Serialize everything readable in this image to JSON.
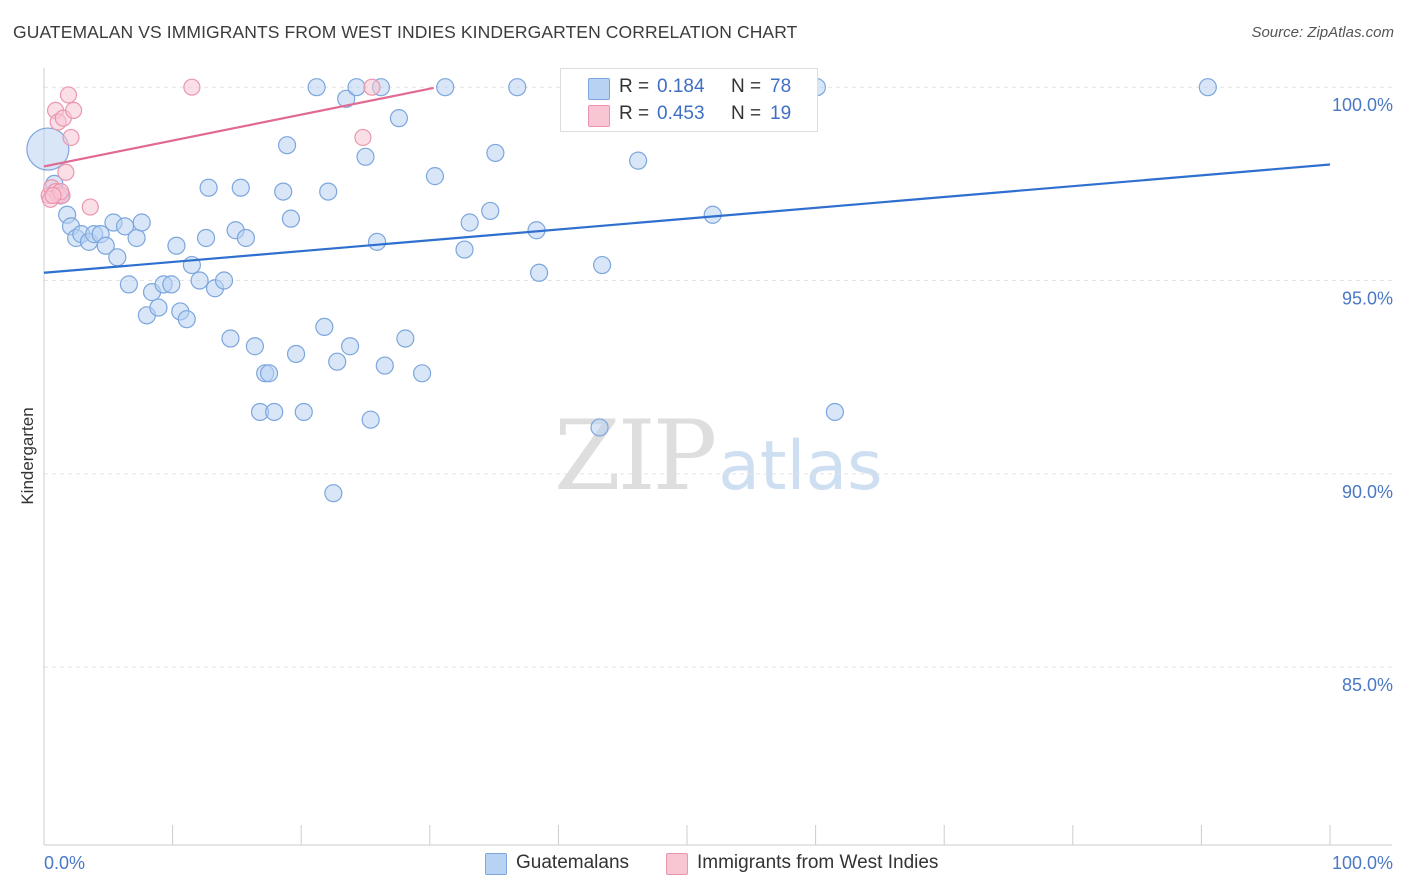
{
  "header": {
    "title": "GUATEMALAN VS IMMIGRANTS FROM WEST INDIES KINDERGARTEN CORRELATION CHART",
    "source": "Source: ZipAtlas.com"
  },
  "watermark": {
    "zip": "ZIP",
    "atlas": "atlas"
  },
  "stats": {
    "blue": {
      "r_label": "R =",
      "r_value": "0.184",
      "n_label": "N =",
      "n_value": "78"
    },
    "pink": {
      "r_label": "R =",
      "r_value": "0.453",
      "n_label": "N =",
      "n_value": "19"
    }
  },
  "legend": {
    "blue_label": "Guatemalans",
    "pink_label": "Immigrants from West Indies"
  },
  "colors": {
    "blue_fill": "#b8d2f3",
    "blue_stroke": "#7da6dd",
    "blue_line": "#2f6fcf",
    "pink_fill": "#f8c5d3",
    "pink_stroke": "#eb95b0",
    "pink_line": "#e06a94",
    "tick_text": "#4a78c4"
  },
  "chart_data": {
    "type": "scatter",
    "title": "GUATEMALAN VS IMMIGRANTS FROM WEST INDIES KINDERGARTEN CORRELATION CHART",
    "xlabel": "",
    "ylabel": "Kindergarten",
    "xlim": [
      0,
      100
    ],
    "ylim": [
      80.4,
      100.6
    ],
    "x_tick_labels": [
      {
        "value": 0,
        "label": "0.0%"
      },
      {
        "value": 100,
        "label": "100.0%"
      }
    ],
    "y_tick_labels": [
      {
        "value": 100,
        "label": "100.0%"
      },
      {
        "value": 95,
        "label": "95.0%"
      },
      {
        "value": 90,
        "label": "90.0%"
      },
      {
        "value": 85,
        "label": "85.0%"
      }
    ],
    "grid": true,
    "legend_position": "bottom",
    "series": [
      {
        "name": "Guatemalans",
        "color": "#7da6dd",
        "trend": {
          "x": [
            0,
            100
          ],
          "y": [
            95.2,
            98.0
          ]
        },
        "points": [
          {
            "x": 0.3,
            "y": 98.4,
            "big": true
          },
          {
            "x": 0.8,
            "y": 97.5
          },
          {
            "x": 1.3,
            "y": 97.2
          },
          {
            "x": 1.8,
            "y": 96.7
          },
          {
            "x": 2.1,
            "y": 96.4
          },
          {
            "x": 2.5,
            "y": 96.1
          },
          {
            "x": 2.9,
            "y": 96.2
          },
          {
            "x": 3.5,
            "y": 96.0
          },
          {
            "x": 3.9,
            "y": 96.2
          },
          {
            "x": 4.4,
            "y": 96.2
          },
          {
            "x": 4.8,
            "y": 95.9
          },
          {
            "x": 5.4,
            "y": 96.5
          },
          {
            "x": 5.7,
            "y": 95.6
          },
          {
            "x": 6.3,
            "y": 96.4
          },
          {
            "x": 6.6,
            "y": 94.9
          },
          {
            "x": 7.2,
            "y": 96.1
          },
          {
            "x": 7.6,
            "y": 96.5
          },
          {
            "x": 8.0,
            "y": 94.1
          },
          {
            "x": 8.4,
            "y": 94.7
          },
          {
            "x": 8.9,
            "y": 94.3
          },
          {
            "x": 9.3,
            "y": 94.9
          },
          {
            "x": 9.9,
            "y": 94.9
          },
          {
            "x": 10.3,
            "y": 95.9
          },
          {
            "x": 10.6,
            "y": 94.2
          },
          {
            "x": 11.1,
            "y": 94.0
          },
          {
            "x": 11.5,
            "y": 95.4
          },
          {
            "x": 12.1,
            "y": 95.0
          },
          {
            "x": 12.6,
            "y": 96.1
          },
          {
            "x": 12.8,
            "y": 97.4
          },
          {
            "x": 13.3,
            "y": 94.8
          },
          {
            "x": 14.0,
            "y": 95.0
          },
          {
            "x": 14.5,
            "y": 93.5
          },
          {
            "x": 14.9,
            "y": 96.3
          },
          {
            "x": 15.3,
            "y": 97.4
          },
          {
            "x": 15.7,
            "y": 96.1
          },
          {
            "x": 16.4,
            "y": 93.3
          },
          {
            "x": 16.8,
            "y": 91.6
          },
          {
            "x": 17.2,
            "y": 92.6
          },
          {
            "x": 17.5,
            "y": 92.6
          },
          {
            "x": 17.9,
            "y": 91.6
          },
          {
            "x": 18.6,
            "y": 97.3
          },
          {
            "x": 18.9,
            "y": 98.5
          },
          {
            "x": 19.2,
            "y": 96.6
          },
          {
            "x": 19.6,
            "y": 93.1
          },
          {
            "x": 20.2,
            "y": 91.6
          },
          {
            "x": 21.2,
            "y": 100.0
          },
          {
            "x": 21.8,
            "y": 93.8
          },
          {
            "x": 22.1,
            "y": 97.3
          },
          {
            "x": 22.5,
            "y": 89.5
          },
          {
            "x": 22.8,
            "y": 92.9
          },
          {
            "x": 23.5,
            "y": 99.7
          },
          {
            "x": 23.8,
            "y": 93.3
          },
          {
            "x": 24.3,
            "y": 100.0
          },
          {
            "x": 25.0,
            "y": 98.2
          },
          {
            "x": 25.4,
            "y": 91.4
          },
          {
            "x": 25.9,
            "y": 96.0
          },
          {
            "x": 26.2,
            "y": 100.0
          },
          {
            "x": 26.5,
            "y": 92.8
          },
          {
            "x": 27.6,
            "y": 99.2
          },
          {
            "x": 28.1,
            "y": 93.5
          },
          {
            "x": 29.4,
            "y": 92.6
          },
          {
            "x": 30.4,
            "y": 97.7
          },
          {
            "x": 31.2,
            "y": 100.0
          },
          {
            "x": 32.7,
            "y": 95.8
          },
          {
            "x": 33.1,
            "y": 96.5
          },
          {
            "x": 34.7,
            "y": 96.8
          },
          {
            "x": 35.1,
            "y": 98.3
          },
          {
            "x": 36.8,
            "y": 100.0
          },
          {
            "x": 38.3,
            "y": 96.3
          },
          {
            "x": 38.5,
            "y": 95.2
          },
          {
            "x": 43.2,
            "y": 91.2
          },
          {
            "x": 43.4,
            "y": 95.4
          },
          {
            "x": 46.2,
            "y": 98.1
          },
          {
            "x": 52.0,
            "y": 96.7
          },
          {
            "x": 58.6,
            "y": 100.0
          },
          {
            "x": 60.1,
            "y": 100.0
          },
          {
            "x": 61.5,
            "y": 91.6
          },
          {
            "x": 90.5,
            "y": 100.0
          }
        ]
      },
      {
        "name": "Immigrants from West Indies",
        "color": "#eb95b0",
        "trend": {
          "x": [
            0,
            30.3
          ],
          "y": [
            97.95,
            99.98
          ]
        },
        "points": [
          {
            "x": 0.4,
            "y": 97.2
          },
          {
            "x": 0.6,
            "y": 97.4
          },
          {
            "x": 0.9,
            "y": 97.3
          },
          {
            "x": 1.1,
            "y": 97.2
          },
          {
            "x": 1.4,
            "y": 97.2
          },
          {
            "x": 0.9,
            "y": 99.4
          },
          {
            "x": 1.1,
            "y": 99.1
          },
          {
            "x": 1.5,
            "y": 99.2
          },
          {
            "x": 1.7,
            "y": 97.8
          },
          {
            "x": 1.9,
            "y": 99.8
          },
          {
            "x": 2.1,
            "y": 98.7
          },
          {
            "x": 2.3,
            "y": 99.4
          },
          {
            "x": 3.6,
            "y": 96.9
          },
          {
            "x": 11.5,
            "y": 100.0
          },
          {
            "x": 24.8,
            "y": 98.7
          },
          {
            "x": 25.5,
            "y": 100.0
          },
          {
            "x": 0.5,
            "y": 97.1
          },
          {
            "x": 1.3,
            "y": 97.3
          },
          {
            "x": 0.7,
            "y": 97.2
          }
        ]
      }
    ]
  }
}
